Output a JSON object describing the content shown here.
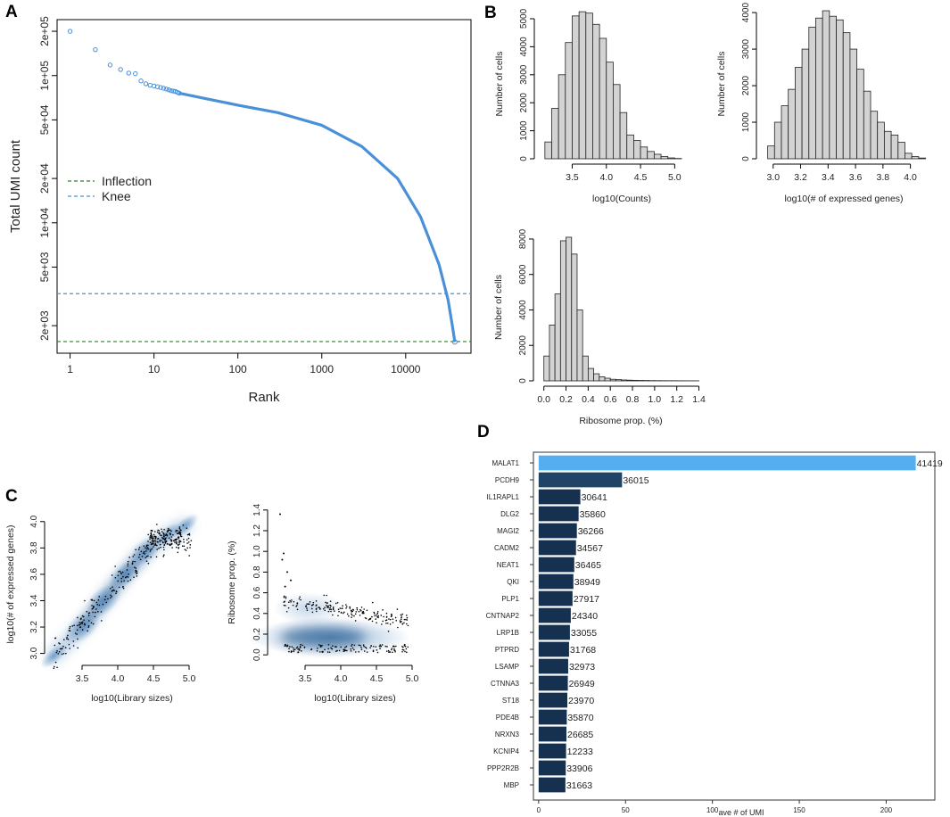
{
  "panel_labels": [
    "A",
    "B",
    "C",
    "D"
  ],
  "colors": {
    "knee_blue": "#4a90d9",
    "inflection_green": "#2e7d32",
    "hist_fill": "#d3d3d3",
    "density_blue": "#2c6fb0",
    "bar_dark": "#16304f",
    "bar_highlight": "#55aef0"
  },
  "chart_data": [
    {
      "id": "A",
      "type": "scatter",
      "xscale": "log",
      "yscale": "log",
      "xlabel": "Rank",
      "ylabel": "Total UMI count",
      "xlim": [
        0.7,
        60000
      ],
      "ylim": [
        1300,
        240000
      ],
      "x_ticks": [
        "1",
        "10",
        "100",
        "1000",
        "10000"
      ],
      "y_ticks": [
        "2e+03",
        "5e+03",
        "1e+04",
        "2e+04",
        "5e+04",
        "1e+05",
        "2e+05"
      ],
      "points": [
        [
          1,
          200000
        ],
        [
          2,
          150000
        ],
        [
          3,
          118000
        ],
        [
          4,
          110000
        ],
        [
          5,
          104000
        ],
        [
          6,
          103000
        ],
        [
          7,
          92000
        ],
        [
          8,
          88000
        ],
        [
          9,
          86000
        ],
        [
          10,
          85000
        ],
        [
          11,
          84000
        ],
        [
          12,
          83000
        ],
        [
          13,
          82000
        ],
        [
          14,
          81000
        ],
        [
          15,
          80000
        ],
        [
          16,
          79000
        ],
        [
          17,
          78500
        ],
        [
          18,
          78000
        ],
        [
          19,
          77000
        ],
        [
          20,
          76000
        ]
      ],
      "curve": [
        [
          20,
          76000
        ],
        [
          40,
          70000
        ],
        [
          100,
          63000
        ],
        [
          300,
          56000
        ],
        [
          1000,
          46000
        ],
        [
          3000,
          33000
        ],
        [
          8000,
          20000
        ],
        [
          15000,
          11000
        ],
        [
          25000,
          5200
        ],
        [
          32000,
          3000
        ],
        [
          36000,
          2000
        ],
        [
          38500,
          1550
        ]
      ],
      "hlines": [
        {
          "name": "Knee",
          "value": 3300
        },
        {
          "name": "Inflection",
          "value": 1560
        }
      ],
      "legend": {
        "position": "left-middle",
        "entries": [
          "Inflection",
          "Knee"
        ]
      }
    },
    {
      "id": "B1",
      "type": "bar",
      "xlabel": "log10(Counts)",
      "ylabel": "Number of cells",
      "bin_start": 3.1,
      "bin_width": 0.1,
      "values": [
        600,
        1800,
        3000,
        4150,
        5100,
        5250,
        5200,
        4800,
        4300,
        3450,
        2650,
        1650,
        850,
        650,
        420,
        260,
        160,
        80,
        30,
        10
      ],
      "x_ticks": [
        "3.5",
        "4.0",
        "4.5",
        "5.0"
      ],
      "y_ticks": [
        "0",
        "1000",
        "2000",
        "3000",
        "4000",
        "5000"
      ],
      "xlim": [
        3.05,
        5.4
      ],
      "ylim": [
        0,
        5350
      ]
    },
    {
      "id": "B2",
      "type": "bar",
      "xlabel": "log10(# of expressed genes)",
      "ylabel": "Number of cells",
      "bin_start": 2.96,
      "bin_width": 0.05,
      "values": [
        350,
        1000,
        1450,
        1900,
        2500,
        3000,
        3600,
        3850,
        4050,
        3900,
        3800,
        3450,
        3000,
        2450,
        1850,
        1300,
        1000,
        750,
        650,
        450,
        150,
        60,
        20
      ],
      "x_ticks": [
        "3.0",
        "3.2",
        "3.4",
        "3.6",
        "3.8",
        "4.0"
      ],
      "y_ticks": [
        "0",
        "1000",
        "2000",
        "3000",
        "4000"
      ],
      "xlim": [
        2.93,
        4.1
      ],
      "ylim": [
        0,
        4100
      ]
    },
    {
      "id": "B3",
      "type": "bar",
      "xlabel": "Ribosome prop. (%)",
      "ylabel": "Number of cells",
      "bin_start": 0.0,
      "bin_width": 0.05,
      "values": [
        1400,
        3150,
        4900,
        7900,
        8100,
        7150,
        4000,
        1400,
        700,
        400,
        230,
        150,
        90,
        70,
        50,
        40,
        30,
        25,
        20,
        15,
        12,
        10,
        8,
        8,
        6,
        5,
        4,
        4
      ],
      "x_ticks": [
        "0.0",
        "0.2",
        "0.4",
        "0.6",
        "0.8",
        "1.0",
        "1.2",
        "1.4"
      ],
      "y_ticks": [
        "0",
        "2000",
        "4000",
        "6000",
        "8000"
      ],
      "xlim": [
        -0.03,
        1.42
      ],
      "ylim": [
        0,
        8300
      ]
    },
    {
      "id": "C1",
      "type": "scatter",
      "xlabel": "log10(Library sizes)",
      "ylabel": "log10(# of expressed genes)",
      "x_ticks": [
        "3.5",
        "4.0",
        "4.5",
        "5.0"
      ],
      "y_ticks": [
        "3.0",
        "3.2",
        "3.4",
        "3.6",
        "3.8",
        "4.0"
      ],
      "xlim": [
        3.05,
        5.35
      ],
      "ylim": [
        2.95,
        4.1
      ]
    },
    {
      "id": "C2",
      "type": "scatter",
      "xlabel": "log10(Library sizes)",
      "ylabel": "Ribosome prop. (%)",
      "x_ticks": [
        "3.5",
        "4.0",
        "4.5",
        "5.0"
      ],
      "y_ticks": [
        "0.0",
        "0.2",
        "0.4",
        "0.6",
        "0.8",
        "1.0",
        "1.2",
        "1.4"
      ],
      "xlim": [
        3.05,
        5.35
      ],
      "ylim": [
        -0.05,
        1.45
      ]
    },
    {
      "id": "D",
      "type": "bar",
      "orientation": "horizontal",
      "xlabel": "ave # of UMI",
      "x_ticks": [
        "0",
        "50",
        "100",
        "150",
        "200"
      ],
      "xlim": [
        -3,
        228
      ],
      "categories": [
        "MALAT1",
        "PCDH9",
        "IL1RAPL1",
        "DLG2",
        "MAGI2",
        "CADM2",
        "NEAT1",
        "QKI",
        "PLP1",
        "CNTNAP2",
        "LRP1B",
        "PTPRD",
        "LSAMP",
        "CTNNA3",
        "ST18",
        "PDE4B",
        "NRXN3",
        "KCNIP4",
        "PPP2R2B",
        "MBP"
      ],
      "values": [
        217,
        48,
        24,
        23,
        22,
        21.5,
        20.5,
        20,
        19.5,
        18.5,
        18,
        17.5,
        17,
        16.8,
        16.5,
        16.2,
        16,
        15.8,
        15.6,
        15.4
      ],
      "data_labels": [
        "41419",
        "36015",
        "30641",
        "35860",
        "36266",
        "34567",
        "36465",
        "38949",
        "27917",
        "24340",
        "33055",
        "31768",
        "32973",
        "26949",
        "23970",
        "35870",
        "26685",
        "12233",
        "33906",
        "31663"
      ]
    }
  ]
}
